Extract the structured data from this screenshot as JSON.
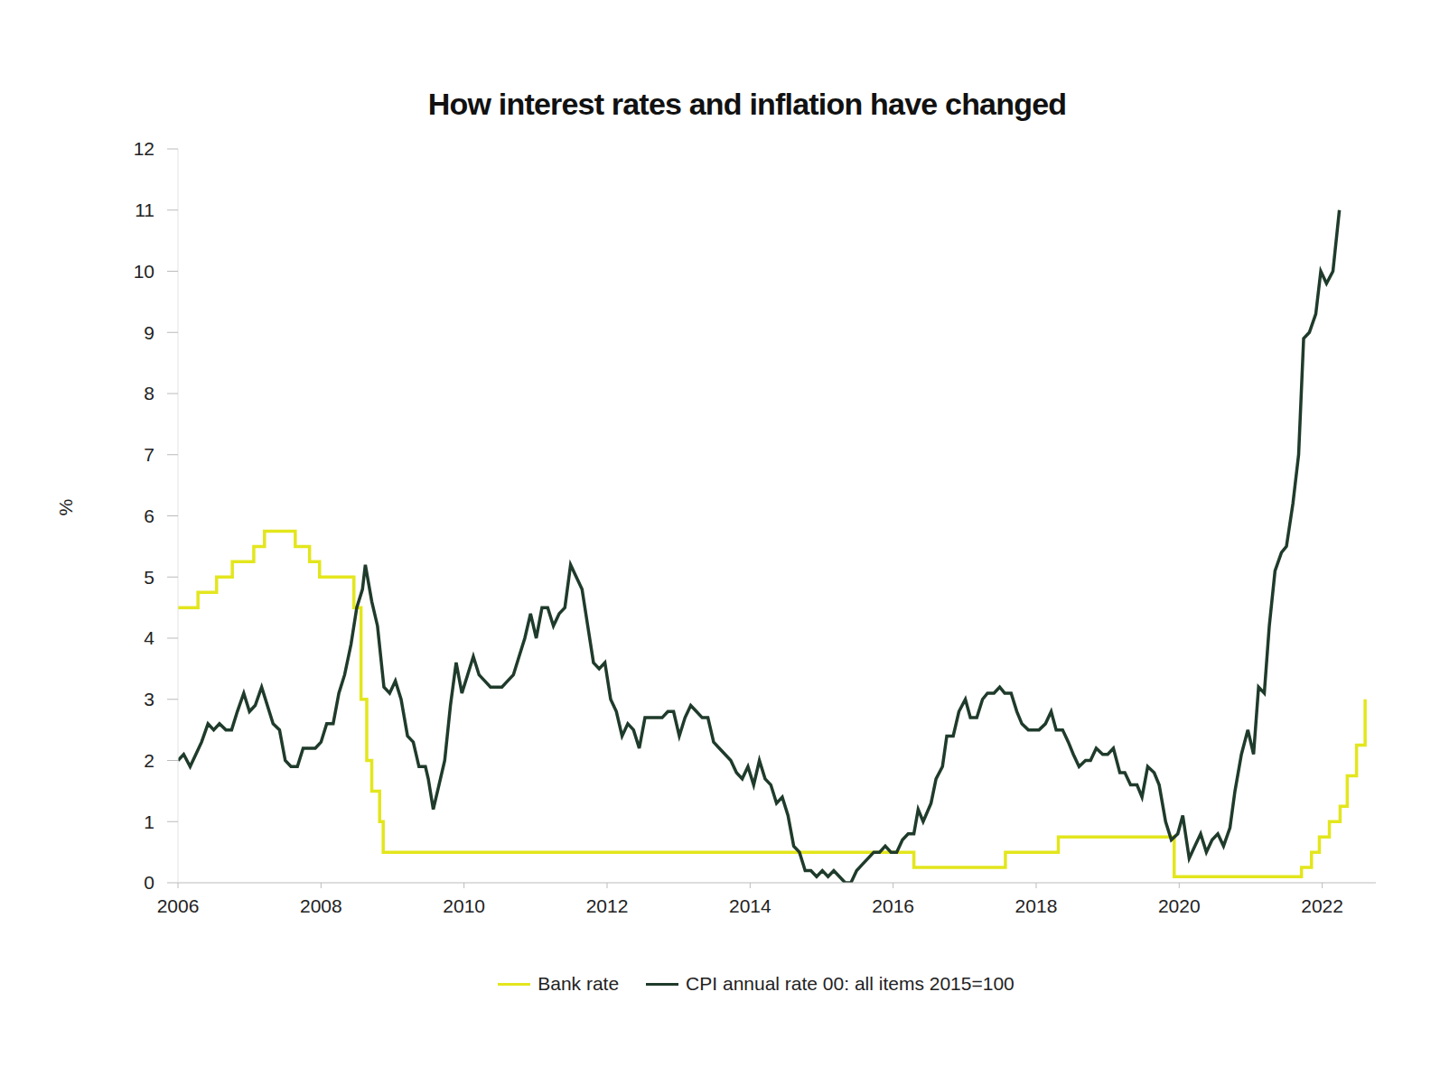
{
  "chart_data": {
    "type": "line",
    "title": "How interest rates and inflation have changed",
    "y_label": "%",
    "xlim": [
      2006,
      2022.75
    ],
    "xticks": [
      2006,
      2008,
      2010,
      2012,
      2014,
      2016,
      2018,
      2020,
      2022
    ],
    "ylim": [
      0,
      12
    ],
    "yticks": [
      0,
      1,
      2,
      3,
      4,
      5,
      6,
      7,
      8,
      9,
      10,
      11,
      12
    ],
    "grid": false,
    "legend": "bottom",
    "series": [
      {
        "name": "Bank rate",
        "color": "#e3e61c",
        "line_style": "step",
        "x": [
          2006.0,
          2006.28,
          2006.54,
          2006.76,
          2007.06,
          2007.21,
          2007.64,
          2007.84,
          2007.98,
          2008.46,
          2008.56,
          2008.64,
          2008.71,
          2008.82,
          2008.87,
          2016.29,
          2017.57,
          2018.31,
          2019.93,
          2021.71,
          2021.85,
          2021.96,
          2022.1,
          2022.25,
          2022.35,
          2022.48,
          2022.6
        ],
        "values": [
          4.5,
          4.75,
          5.0,
          5.25,
          5.5,
          5.75,
          5.5,
          5.25,
          5.0,
          4.5,
          3.0,
          2.0,
          1.5,
          1.0,
          0.5,
          0.25,
          0.5,
          0.75,
          0.1,
          0.25,
          0.5,
          0.75,
          1.0,
          1.25,
          1.75,
          2.25,
          3.0
        ]
      },
      {
        "name": "CPI annual rate 00: all items 2015=100",
        "color": "#1f3b2b",
        "line_style": "solid",
        "x": [
          2006.0,
          2006.08,
          2006.17,
          2006.25,
          2006.33,
          2006.42,
          2006.5,
          2006.58,
          2006.67,
          2006.75,
          2006.83,
          2006.92,
          2007.0,
          2007.08,
          2007.17,
          2007.25,
          2007.33,
          2007.42,
          2007.5,
          2007.58,
          2007.67,
          2007.75,
          2007.83,
          2007.92,
          2008.0,
          2008.08,
          2008.17,
          2008.25,
          2008.33,
          2008.42,
          2008.5,
          2008.58,
          2008.62,
          2008.71,
          2008.79,
          2008.88,
          2008.96,
          2009.04,
          2009.12,
          2009.21,
          2009.29,
          2009.37,
          2009.46,
          2009.5,
          2009.57,
          2009.65,
          2009.73,
          2009.81,
          2009.89,
          2009.97,
          2010.05,
          2010.13,
          2010.21,
          2010.29,
          2010.37,
          2010.45,
          2010.53,
          2010.61,
          2010.69,
          2010.77,
          2010.85,
          2010.93,
          2011.01,
          2011.09,
          2011.17,
          2011.25,
          2011.33,
          2011.41,
          2011.49,
          2011.57,
          2011.65,
          2011.73,
          2011.81,
          2011.89,
          2011.97,
          2012.05,
          2012.13,
          2012.21,
          2012.29,
          2012.37,
          2012.45,
          2012.53,
          2012.61,
          2012.69,
          2012.77,
          2012.85,
          2012.93,
          2013.01,
          2013.09,
          2013.17,
          2013.25,
          2013.33,
          2013.41,
          2013.49,
          2013.57,
          2013.65,
          2013.73,
          2013.81,
          2013.89,
          2013.97,
          2014.05,
          2014.13,
          2014.21,
          2014.29,
          2014.37,
          2014.45,
          2014.53,
          2014.61,
          2014.69,
          2014.77,
          2014.85,
          2014.93,
          2015.01,
          2015.09,
          2015.17,
          2015.25,
          2015.33,
          2015.41,
          2015.49,
          2015.57,
          2015.65,
          2015.73,
          2015.81,
          2015.89,
          2015.97,
          2016.05,
          2016.13,
          2016.21,
          2016.29,
          2016.35,
          2016.42,
          2016.53,
          2016.6,
          2016.69,
          2016.75,
          2016.84,
          2016.92,
          2017.01,
          2017.08,
          2017.17,
          2017.25,
          2017.32,
          2017.41,
          2017.49,
          2017.56,
          2017.65,
          2017.73,
          2017.8,
          2017.89,
          2017.97,
          2018.04,
          2018.13,
          2018.21,
          2018.28,
          2018.37,
          2018.45,
          2018.52,
          2018.6,
          2018.69,
          2018.76,
          2018.84,
          2018.93,
          2019.0,
          2019.08,
          2019.17,
          2019.24,
          2019.32,
          2019.41,
          2019.48,
          2019.56,
          2019.65,
          2019.72,
          2019.81,
          2019.89,
          2019.98,
          2020.05,
          2020.14,
          2020.22,
          2020.3,
          2020.38,
          2020.46,
          2020.54,
          2020.62,
          2020.71,
          2020.78,
          2020.87,
          2020.96,
          2021.04,
          2021.11,
          2021.19,
          2021.26,
          2021.34,
          2021.43,
          2021.5,
          2021.59,
          2021.67,
          2021.74,
          2021.82,
          2021.91,
          2021.98,
          2022.06,
          2022.15,
          2022.24
        ],
        "values": [
          2.0,
          2.1,
          1.9,
          2.1,
          2.3,
          2.6,
          2.5,
          2.6,
          2.5,
          2.5,
          2.8,
          3.1,
          2.8,
          2.9,
          3.2,
          2.9,
          2.6,
          2.5,
          2.0,
          1.9,
          1.9,
          2.2,
          2.2,
          2.2,
          2.3,
          2.6,
          2.6,
          3.1,
          3.4,
          3.9,
          4.5,
          4.8,
          5.2,
          4.6,
          4.2,
          3.2,
          3.1,
          3.3,
          3.0,
          2.4,
          2.3,
          1.9,
          1.9,
          1.7,
          1.2,
          1.6,
          2.0,
          2.9,
          3.6,
          3.1,
          3.4,
          3.7,
          3.4,
          3.3,
          3.2,
          3.2,
          3.2,
          3.3,
          3.4,
          3.7,
          4.0,
          4.4,
          4.0,
          4.5,
          4.5,
          4.2,
          4.4,
          4.5,
          5.2,
          5.0,
          4.8,
          4.2,
          3.6,
          3.5,
          3.6,
          3.0,
          2.8,
          2.4,
          2.6,
          2.5,
          2.2,
          2.7,
          2.7,
          2.7,
          2.7,
          2.8,
          2.8,
          2.4,
          2.7,
          2.9,
          2.8,
          2.7,
          2.7,
          2.3,
          2.2,
          2.1,
          2.0,
          1.8,
          1.7,
          1.9,
          1.6,
          2.0,
          1.7,
          1.6,
          1.3,
          1.4,
          1.1,
          0.6,
          0.5,
          0.2,
          0.2,
          0.1,
          0.2,
          0.1,
          0.2,
          0.1,
          0.0,
          0.0,
          0.2,
          0.3,
          0.4,
          0.5,
          0.5,
          0.6,
          0.5,
          0.5,
          0.7,
          0.8,
          0.8,
          1.2,
          1.0,
          1.3,
          1.7,
          1.9,
          2.4,
          2.4,
          2.8,
          3.0,
          2.7,
          2.7,
          3.0,
          3.1,
          3.1,
          3.2,
          3.1,
          3.1,
          2.8,
          2.6,
          2.5,
          2.5,
          2.5,
          2.6,
          2.8,
          2.5,
          2.5,
          2.3,
          2.1,
          1.9,
          2.0,
          2.0,
          2.2,
          2.1,
          2.1,
          2.2,
          1.8,
          1.8,
          1.6,
          1.6,
          1.4,
          1.9,
          1.8,
          1.6,
          1.0,
          0.7,
          0.8,
          1.1,
          0.4,
          0.6,
          0.8,
          0.5,
          0.7,
          0.8,
          0.6,
          0.9,
          1.5,
          2.1,
          2.5,
          2.1,
          3.2,
          3.1,
          4.2,
          5.1,
          5.4,
          5.5,
          6.2,
          7.0,
          8.9,
          9.0,
          9.3,
          10.0,
          9.8,
          10.0,
          11.0
        ]
      }
    ]
  }
}
